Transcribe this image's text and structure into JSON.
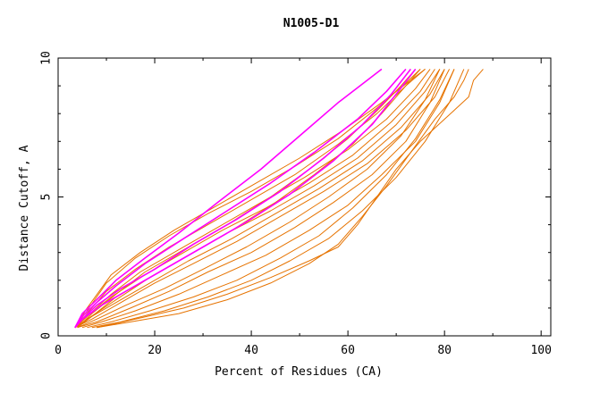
{
  "chart_data": {
    "type": "line",
    "title": "N1005-D1",
    "xlabel": "Percent of Residues (CA)",
    "ylabel": "Distance Cutoff, A",
    "xlim": [
      0,
      102
    ],
    "ylim": [
      0,
      10
    ],
    "x_ticks": [
      "0",
      "20",
      "40",
      "60",
      "80",
      "100"
    ],
    "y_ticks": [
      "0",
      "5",
      "10"
    ],
    "grid": false,
    "colors": {
      "highlight": "#ff00ff",
      "other": "#e67300"
    },
    "series": [
      {
        "name": "magenta-1",
        "color": "#ff00ff",
        "x": [
          3.5,
          5,
          8,
          12,
          18,
          25,
          33,
          42,
          50,
          58,
          64,
          67
        ],
        "y": [
          0.3,
          0.8,
          1.3,
          2.0,
          2.8,
          3.7,
          4.8,
          6.0,
          7.2,
          8.4,
          9.2,
          9.6
        ]
      },
      {
        "name": "magenta-2",
        "color": "#ff00ff",
        "x": [
          3.5,
          5,
          8,
          12,
          18,
          26,
          35,
          44,
          53,
          62,
          68,
          72
        ],
        "y": [
          0.3,
          0.7,
          1.2,
          1.8,
          2.6,
          3.5,
          4.5,
          5.5,
          6.6,
          7.8,
          8.8,
          9.6
        ]
      },
      {
        "name": "magenta-3",
        "color": "#ff00ff",
        "x": [
          3.5,
          5,
          8,
          13,
          20,
          28,
          37,
          46,
          55,
          63,
          69,
          73
        ],
        "y": [
          0.3,
          0.6,
          1.1,
          1.7,
          2.4,
          3.3,
          4.2,
          5.2,
          6.4,
          7.6,
          8.7,
          9.6
        ]
      },
      {
        "name": "magenta-4",
        "color": "#ff00ff",
        "x": [
          3.5,
          5,
          9,
          14,
          21,
          30,
          39,
          48,
          57,
          65,
          70,
          74
        ],
        "y": [
          0.3,
          0.6,
          1.1,
          1.6,
          2.3,
          3.2,
          4.1,
          5.1,
          6.3,
          7.6,
          8.7,
          9.6
        ]
      },
      {
        "name": "orange-1",
        "color": "#e67300",
        "x": [
          3.5,
          6,
          11,
          17,
          24,
          32,
          41,
          50,
          59,
          67,
          73,
          76
        ],
        "y": [
          0.3,
          1.0,
          2.2,
          3.0,
          3.8,
          4.6,
          5.5,
          6.4,
          7.4,
          8.4,
          9.2,
          9.6
        ]
      },
      {
        "name": "orange-2",
        "color": "#e67300",
        "x": [
          3.5,
          6,
          10,
          16,
          23,
          31,
          40,
          49,
          58,
          66,
          72,
          75
        ],
        "y": [
          0.3,
          0.9,
          1.9,
          2.8,
          3.6,
          4.4,
          5.2,
          6.1,
          7.1,
          8.2,
          9.1,
          9.6
        ]
      },
      {
        "name": "orange-3",
        "color": "#e67300",
        "x": [
          3.5,
          6,
          10,
          16,
          23,
          31,
          40,
          49,
          58,
          66,
          72,
          76
        ],
        "y": [
          0.3,
          0.8,
          1.6,
          2.4,
          3.2,
          4.0,
          4.9,
          5.8,
          6.9,
          8.0,
          9.0,
          9.6
        ]
      },
      {
        "name": "orange-4",
        "color": "#e67300",
        "x": [
          3.5,
          6,
          11,
          17,
          25,
          33,
          42,
          51,
          60,
          68,
          74,
          77
        ],
        "y": [
          0.3,
          0.7,
          1.5,
          2.3,
          3.1,
          3.9,
          4.8,
          5.7,
          6.7,
          7.8,
          8.9,
          9.6
        ]
      },
      {
        "name": "orange-5",
        "color": "#e67300",
        "x": [
          3.5,
          6,
          11,
          18,
          26,
          34,
          43,
          52,
          61,
          69,
          75,
          78
        ],
        "y": [
          0.3,
          0.7,
          1.4,
          2.2,
          3.0,
          3.8,
          4.6,
          5.5,
          6.5,
          7.7,
          8.8,
          9.6
        ]
      },
      {
        "name": "orange-6",
        "color": "#e67300",
        "x": [
          3.5,
          6,
          12,
          19,
          27,
          35,
          44,
          53,
          62,
          70,
          76,
          79
        ],
        "y": [
          0.3,
          0.6,
          1.3,
          2.1,
          2.9,
          3.7,
          4.5,
          5.4,
          6.4,
          7.6,
          8.8,
          9.6
        ]
      },
      {
        "name": "orange-7",
        "color": "#e67300",
        "x": [
          3.5,
          6,
          12,
          19,
          27,
          36,
          45,
          54,
          63,
          71,
          77,
          80
        ],
        "y": [
          0.3,
          0.6,
          1.2,
          1.9,
          2.7,
          3.5,
          4.4,
          5.3,
          6.3,
          7.5,
          8.7,
          9.6
        ]
      },
      {
        "name": "orange-8",
        "color": "#e67300",
        "x": [
          3.5,
          7,
          13,
          20,
          28,
          37,
          46,
          55,
          64,
          72,
          78,
          81
        ],
        "y": [
          0.3,
          0.6,
          1.2,
          1.9,
          2.6,
          3.4,
          4.3,
          5.2,
          6.2,
          7.4,
          8.6,
          9.6
        ]
      },
      {
        "name": "orange-9",
        "color": "#e67300",
        "x": [
          4,
          8,
          14,
          22,
          30,
          39,
          48,
          56,
          64,
          71,
          76,
          79
        ],
        "y": [
          0.3,
          0.6,
          1.1,
          1.7,
          2.4,
          3.2,
          4.1,
          5.0,
          6.0,
          7.2,
          8.5,
          9.6
        ]
      },
      {
        "name": "orange-10",
        "color": "#e67300",
        "x": [
          4,
          8,
          15,
          23,
          31,
          40,
          49,
          57,
          65,
          72,
          77,
          80
        ],
        "y": [
          0.3,
          0.5,
          1.0,
          1.6,
          2.3,
          3.0,
          3.9,
          4.8,
          5.8,
          7.0,
          8.4,
          9.6
        ]
      },
      {
        "name": "orange-11",
        "color": "#e67300",
        "x": [
          5,
          9,
          16,
          25,
          34,
          43,
          52,
          60,
          67,
          74,
          79,
          82
        ],
        "y": [
          0.3,
          0.5,
          0.9,
          1.5,
          2.2,
          2.9,
          3.8,
          4.7,
          5.8,
          7.0,
          8.4,
          9.6
        ]
      },
      {
        "name": "orange-12",
        "color": "#e67300",
        "x": [
          6,
          11,
          19,
          28,
          37,
          46,
          54,
          61,
          68,
          74,
          79,
          82
        ],
        "y": [
          0.3,
          0.5,
          0.9,
          1.4,
          2.0,
          2.8,
          3.6,
          4.6,
          5.8,
          7.1,
          8.5,
          9.6
        ]
      },
      {
        "name": "orange-13",
        "color": "#e67300",
        "x": [
          7,
          13,
          22,
          31,
          40,
          48,
          56,
          63,
          70,
          76,
          81,
          84
        ],
        "y": [
          0.3,
          0.5,
          0.9,
          1.4,
          2.0,
          2.7,
          3.5,
          4.5,
          5.7,
          7.0,
          8.4,
          9.6
        ]
      },
      {
        "name": "orange-14",
        "color": "#e67300",
        "x": [
          8,
          15,
          25,
          35,
          44,
          52,
          58,
          63,
          68,
          73,
          78,
          82,
          84,
          85
        ],
        "y": [
          0.3,
          0.5,
          0.8,
          1.3,
          1.9,
          2.6,
          3.3,
          4.3,
          5.4,
          6.6,
          7.8,
          8.6,
          9.2,
          9.6
        ]
      },
      {
        "name": "orange-15",
        "color": "#e67300",
        "x": [
          8,
          16,
          26,
          35,
          44,
          52,
          58,
          62,
          66,
          70,
          75,
          80,
          85,
          86,
          88
        ],
        "y": [
          0.3,
          0.6,
          1.0,
          1.5,
          2.1,
          2.7,
          3.2,
          4.0,
          5.0,
          6.0,
          7.0,
          7.8,
          8.6,
          9.2,
          9.6
        ]
      },
      {
        "name": "orange-16",
        "color": "#e67300",
        "x": [
          4,
          7,
          12,
          18,
          26,
          35,
          44,
          52,
          60,
          66,
          71,
          74
        ],
        "y": [
          0.3,
          0.8,
          1.5,
          2.3,
          3.1,
          4.0,
          5.0,
          6.0,
          7.1,
          8.1,
          9.0,
          9.6
        ]
      },
      {
        "name": "orange-17",
        "color": "#e67300",
        "x": [
          4,
          7,
          12,
          19,
          27,
          36,
          45,
          53,
          61,
          67,
          72,
          75
        ],
        "y": [
          0.3,
          0.7,
          1.4,
          2.1,
          2.9,
          3.8,
          4.8,
          5.8,
          6.9,
          8.0,
          9.0,
          9.6
        ]
      }
    ]
  }
}
